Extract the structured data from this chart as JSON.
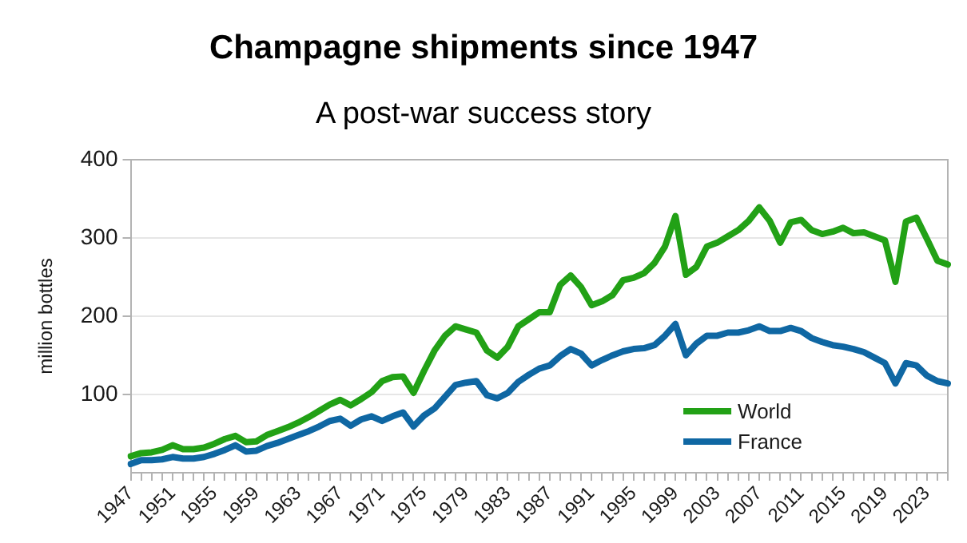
{
  "chart_data": {
    "type": "line",
    "title": "Champagne shipments since 1947",
    "subtitle": "A post-war success story",
    "ylabel": "million bottles",
    "categories": [
      "1947",
      null,
      null,
      null,
      "1951",
      null,
      null,
      null,
      "1955",
      null,
      null,
      null,
      "1959",
      null,
      null,
      null,
      "1963",
      null,
      null,
      null,
      "1967",
      null,
      null,
      null,
      "1971",
      null,
      null,
      null,
      "1975",
      null,
      null,
      null,
      "1979",
      null,
      null,
      null,
      "1983",
      null,
      null,
      null,
      "1987",
      null,
      null,
      null,
      "1991",
      null,
      null,
      null,
      "1995",
      null,
      null,
      null,
      "1999",
      null,
      null,
      null,
      "2003",
      null,
      null,
      null,
      "2007",
      null,
      null,
      null,
      "2011",
      null,
      null,
      null,
      "2015",
      null,
      null,
      null,
      "2019",
      null,
      null,
      null,
      "2023",
      null,
      null
    ],
    "series": [
      {
        "name": "World",
        "color": "#22a116",
        "values": [
          21,
          25,
          26,
          29,
          35,
          30,
          30,
          32,
          37,
          43,
          47,
          39,
          40,
          48,
          53,
          58,
          64,
          71,
          79,
          87,
          93,
          86,
          94,
          103,
          117,
          122,
          123,
          102,
          130,
          156,
          175,
          187,
          183,
          179,
          156,
          147,
          161,
          187,
          196,
          205,
          205,
          240,
          252,
          237,
          214,
          219,
          227,
          246,
          249,
          255,
          268,
          289,
          328,
          253,
          263,
          289,
          294,
          302,
          310,
          322,
          339,
          322,
          294,
          320,
          323,
          310,
          305,
          308,
          313,
          306,
          307,
          302,
          297,
          244,
          321,
          326,
          299,
          271,
          266
        ]
      },
      {
        "name": "France",
        "color": "#0f67a3",
        "values": [
          11,
          16,
          16,
          17,
          20,
          18,
          18,
          20,
          24,
          29,
          35,
          27,
          28,
          34,
          38,
          43,
          48,
          53,
          59,
          66,
          69,
          60,
          68,
          72,
          66,
          72,
          77,
          59,
          73,
          82,
          97,
          112,
          115,
          117,
          99,
          95,
          102,
          116,
          125,
          133,
          137,
          149,
          158,
          152,
          137,
          144,
          150,
          155,
          158,
          159,
          163,
          175,
          190,
          150,
          165,
          175,
          175,
          179,
          179,
          182,
          187,
          181,
          181,
          185,
          181,
          172,
          167,
          163,
          161,
          158,
          154,
          147,
          140,
          114,
          140,
          137,
          124,
          117,
          114
        ]
      }
    ],
    "ylim": [
      0,
      400
    ],
    "yticks": [
      100,
      200,
      300,
      400
    ],
    "grid": "y",
    "legend": "bottom right",
    "line_style": "solid"
  }
}
